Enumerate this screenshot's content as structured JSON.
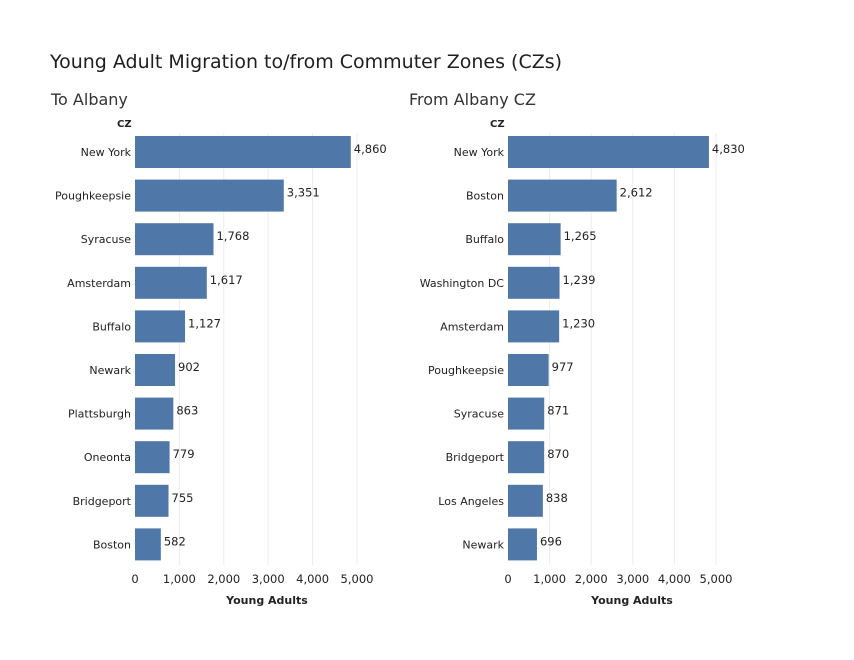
{
  "title": "Young Adult Migration to/from Commuter Zones (CZs)",
  "colors": {
    "bar": "#4f77a7",
    "grid": "#ececec",
    "text": "#222222"
  },
  "chart_data": [
    {
      "type": "bar",
      "orientation": "horizontal",
      "title": "To Albany",
      "category_header": "CZ",
      "xlabel": "Young Adults",
      "xlim": [
        0,
        5000
      ],
      "xticks": [
        "0",
        "1,000",
        "2,000",
        "3,000",
        "4,000",
        "5,000"
      ],
      "xtick_values": [
        0,
        1000,
        2000,
        3000,
        4000,
        5000
      ],
      "grid": true,
      "categories": [
        "New York",
        "Poughkeepsie",
        "Syracuse",
        "Amsterdam",
        "Buffalo",
        "Newark",
        "Plattsburgh",
        "Oneonta",
        "Bridgeport",
        "Boston"
      ],
      "values": [
        4860,
        3351,
        1768,
        1617,
        1127,
        902,
        863,
        779,
        755,
        582
      ],
      "value_labels": [
        "4,860",
        "3,351",
        "1,768",
        "1,617",
        "1,127",
        "902",
        "863",
        "779",
        "755",
        "582"
      ]
    },
    {
      "type": "bar",
      "orientation": "horizontal",
      "title": "From Albany CZ",
      "category_header": "CZ",
      "xlabel": "Young Adults",
      "xlim": [
        0,
        5000
      ],
      "xticks": [
        "0",
        "1,000",
        "2,000",
        "3,000",
        "4,000",
        "5,000"
      ],
      "xtick_values": [
        0,
        1000,
        2000,
        3000,
        4000,
        5000
      ],
      "grid": true,
      "categories": [
        "New York",
        "Boston",
        "Buffalo",
        "Washington DC",
        "Amsterdam",
        "Poughkeepsie",
        "Syracuse",
        "Bridgeport",
        "Los Angeles",
        "Newark"
      ],
      "values": [
        4830,
        2612,
        1265,
        1239,
        1230,
        977,
        871,
        870,
        838,
        696
      ],
      "value_labels": [
        "4,830",
        "2,612",
        "1,265",
        "1,239",
        "1,230",
        "977",
        "871",
        "870",
        "838",
        "696"
      ]
    }
  ]
}
